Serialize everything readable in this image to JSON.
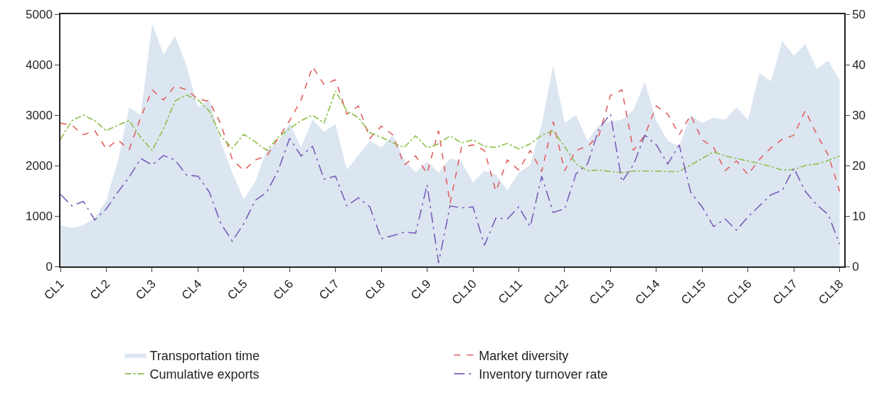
{
  "chart_data": {
    "type": "line",
    "categories": [
      "CL1",
      null,
      null,
      null,
      "CL2",
      null,
      null,
      null,
      "CL3",
      null,
      null,
      null,
      "CL4",
      null,
      null,
      null,
      "CL5",
      null,
      null,
      null,
      "CL6",
      null,
      null,
      null,
      "CL7",
      null,
      null,
      null,
      "CL8",
      null,
      null,
      null,
      "CL9",
      null,
      null,
      null,
      "CL10",
      null,
      null,
      null,
      "CL11",
      null,
      null,
      null,
      "CL12",
      null,
      null,
      null,
      "CL13",
      null,
      null,
      null,
      "CL14",
      null,
      null,
      null,
      "CL15",
      null,
      null,
      null,
      "CL16",
      null,
      null,
      null,
      "CL17",
      null,
      null,
      null,
      "CL18"
    ],
    "series": [
      {
        "name": "Transportation time",
        "type": "area",
        "color": "#dce6f1",
        "values": [
          820,
          760,
          820,
          960,
          1310,
          2080,
          3150,
          3000,
          4810,
          4200,
          4570,
          3980,
          3150,
          3320,
          2470,
          1860,
          1330,
          1680,
          2300,
          2470,
          2840,
          2360,
          2910,
          2670,
          2820,
          1920,
          2200,
          2490,
          2360,
          2600,
          2120,
          1860,
          2080,
          1860,
          2140,
          2080,
          1660,
          1900,
          1820,
          1510,
          1860,
          2010,
          2820,
          3980,
          2840,
          3000,
          2490,
          2800,
          2870,
          2910,
          3100,
          3650,
          2890,
          2490,
          2380,
          3000,
          2840,
          2950,
          2910,
          3150,
          2910,
          3830,
          3670,
          4470,
          4180,
          4410,
          3920,
          4080,
          3690
        ]
      },
      {
        "name": "Market diversity",
        "axis": "y2",
        "color": "#e06060",
        "line_style": "dashed",
        "values": [
          28.4,
          28.0,
          26.1,
          26.9,
          23.3,
          25.1,
          23.2,
          29.5,
          35.0,
          33.0,
          35.8,
          35.0,
          33.2,
          32.7,
          28.2,
          21.2,
          19.0,
          21.1,
          21.9,
          25.4,
          28.9,
          33.0,
          39.6,
          36.1,
          37.0,
          30.2,
          31.8,
          25.4,
          27.8,
          26.1,
          20.1,
          21.9,
          18.4,
          26.9,
          12.5,
          23.6,
          24.1,
          23.0,
          14.9,
          21.1,
          19.1,
          23.0,
          18.8,
          28.7,
          19.0,
          23.0,
          23.8,
          26.0,
          33.9,
          35.0,
          23.0,
          26.0,
          31.8,
          30.2,
          26.1,
          30.0,
          25.1,
          23.6,
          19.0,
          20.9,
          18.2,
          21.2,
          23.5,
          25.2,
          26.0,
          30.9,
          26.2,
          22.1,
          14.9
        ]
      },
      {
        "name": "Cumulative exports",
        "axis": "y2",
        "color": "#8dc04a",
        "line_style": "dashdot",
        "values": [
          25.2,
          28.9,
          30.0,
          28.9,
          26.9,
          28.0,
          28.9,
          25.6,
          23.0,
          27.3,
          32.8,
          34.0,
          33.0,
          30.8,
          25.8,
          23.4,
          26.2,
          24.7,
          23.0,
          25.6,
          27.3,
          28.9,
          30.0,
          28.4,
          34.8,
          30.8,
          29.5,
          26.5,
          25.6,
          24.5,
          23.6,
          25.9,
          23.5,
          24.3,
          25.9,
          24.5,
          25.1,
          23.8,
          23.6,
          24.4,
          23.3,
          24.3,
          26.0,
          26.9,
          23.8,
          20.3,
          19.0,
          19.1,
          18.8,
          18.6,
          18.9,
          18.9,
          18.9,
          18.8,
          18.8,
          20.1,
          21.4,
          22.7,
          21.9,
          21.4,
          20.9,
          20.4,
          19.8,
          19.1,
          19.2,
          20.0,
          20.3,
          21.0,
          21.9
        ]
      },
      {
        "name": "Inventory turnover rate",
        "axis": "y2",
        "color": "#7b5cb8",
        "line_style": "longdashdot",
        "values": [
          14.3,
          12.0,
          12.9,
          9.2,
          11.4,
          14.7,
          17.7,
          21.4,
          20.1,
          22.0,
          21.1,
          18.1,
          17.9,
          14.7,
          8.5,
          5.0,
          8.5,
          13.1,
          14.7,
          19.0,
          25.4,
          21.9,
          23.8,
          17.3,
          17.9,
          12.0,
          13.6,
          11.8,
          5.5,
          6.1,
          6.8,
          6.6,
          16.2,
          0.7,
          12.0,
          11.6,
          11.8,
          4.2,
          9.6,
          9.4,
          11.8,
          7.9,
          17.9,
          10.7,
          11.4,
          18.4,
          20.3,
          27.3,
          30.2,
          16.8,
          20.1,
          26.0,
          24.1,
          20.3,
          24.1,
          14.7,
          11.8,
          7.9,
          9.4,
          7.2,
          9.8,
          12.0,
          14.2,
          15.1,
          19.5,
          14.9,
          12.2,
          10.3,
          4.4
        ]
      }
    ],
    "ylim": [
      0,
      5000
    ],
    "yticks": [
      0,
      1000,
      2000,
      3000,
      4000,
      5000
    ],
    "y2lim": [
      0,
      50
    ],
    "y2ticks": [
      0,
      10,
      20,
      30,
      40,
      50
    ],
    "grid": false,
    "legend": "bottom",
    "marker": "none"
  }
}
